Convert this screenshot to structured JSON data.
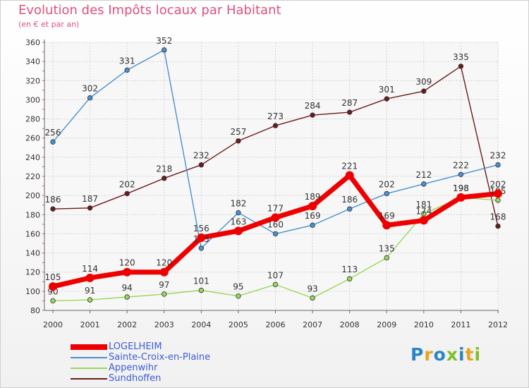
{
  "header": {
    "title": "Evolution des Impôts locaux par Habitant",
    "subtitle": "(en € et par an)"
  },
  "brand": {
    "text": "Proxiti",
    "colors": [
      "#2b84c6",
      "#e8a21f",
      "#2b84c6",
      "#7fbf2a",
      "#2b84c6",
      "#e8a21f",
      "#7fbf2a"
    ]
  },
  "chart_data": {
    "type": "line",
    "title": "Evolution des Impôts locaux par Habitant",
    "subtitle": "(en € et par an)",
    "xlabel": "",
    "ylabel": "",
    "x": [
      "2000",
      "2001",
      "2002",
      "2003",
      "2004",
      "2005",
      "2006",
      "2007",
      "2008",
      "2009",
      "2010",
      "2011",
      "2012"
    ],
    "ylim": [
      80,
      360
    ],
    "yticks": [
      80,
      100,
      120,
      140,
      160,
      180,
      200,
      220,
      240,
      260,
      280,
      300,
      320,
      340,
      360
    ],
    "grid": true,
    "legend_position": "bottom-left",
    "series": [
      {
        "name": "Sundhoffen",
        "color": "#6b1b1b",
        "values": [
          186,
          187,
          202,
          218,
          232,
          257,
          273,
          284,
          287,
          301,
          309,
          335,
          168
        ],
        "labels": [
          "186",
          "187",
          "202",
          "218",
          "232",
          "257",
          "273",
          "284",
          "287",
          "301",
          "309",
          "335",
          "168"
        ]
      },
      {
        "name": "Sainte-Croix-en-Plaine",
        "color": "#4a8fd0",
        "values": [
          256,
          302,
          331,
          352,
          145,
          182,
          160,
          169,
          186,
          202,
          212,
          222,
          232
        ],
        "labels": [
          "256",
          "302",
          "331",
          "352",
          "145",
          "182",
          "160",
          "169",
          "186",
          "202",
          "212",
          "222",
          "232"
        ]
      },
      {
        "name": "Appenwihr",
        "color": "#9ad65a",
        "values": [
          90,
          91,
          94,
          97,
          101,
          95,
          107,
          93,
          113,
          135,
          181,
          198,
          195
        ],
        "labels": [
          "90",
          "91",
          "94",
          "97",
          "101",
          "95",
          "107",
          "93",
          "113",
          "135",
          "181",
          "198",
          "195"
        ]
      },
      {
        "name": "LOGELHEIM",
        "color": "#ee0000",
        "values": [
          105,
          114,
          120,
          120,
          156,
          163,
          177,
          189,
          221,
          169,
          174,
          198,
          202
        ],
        "labels": [
          "105",
          "114",
          "120",
          "120",
          "156",
          "163",
          "177",
          "189",
          "221",
          "169",
          "174",
          "198",
          "202"
        ]
      }
    ],
    "legend_order": [
      "LOGELHEIM",
      "Sainte-Croix-en-Plaine",
      "Appenwihr",
      "Sundhoffen"
    ]
  }
}
